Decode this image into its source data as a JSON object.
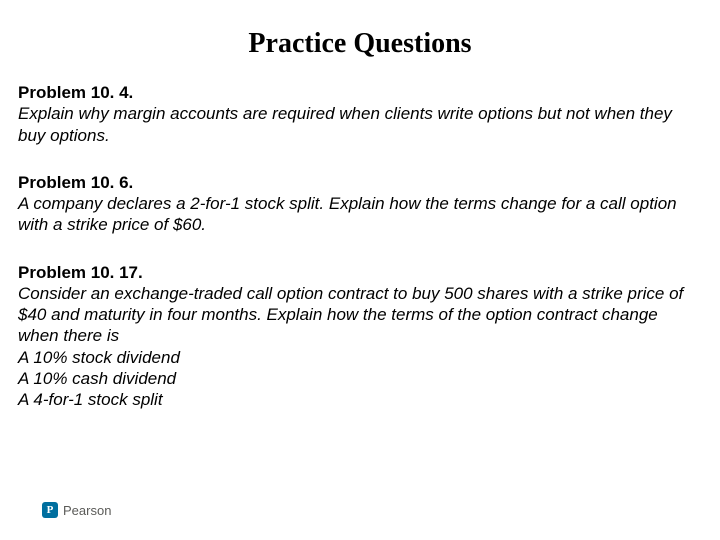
{
  "title": "Practice Questions",
  "title_fontsize": 28,
  "title_color": "#000000",
  "body_fontsize": 17,
  "body_color": "#000000",
  "background_color": "#ffffff",
  "problems": [
    {
      "heading": "Problem 10. 4.",
      "body": "Explain why margin accounts are required when clients write options but not when they buy options."
    },
    {
      "heading": "Problem 10. 6.",
      "body": "A company declares a 2-for-1 stock split. Explain how the terms change for a call option with a strike price of $60."
    },
    {
      "heading": "Problem 10. 17.",
      "body": "Consider an exchange-traded call option contract to buy 500 shares with a strike price of $40 and maturity in four months. Explain how the terms of the option contract change when there is\nA 10% stock dividend\nA 10% cash dividend\nA 4-for-1 stock split"
    }
  ],
  "footer": {
    "logo_letter": "P",
    "brand_text": "Pearson",
    "brand_color": "#006f9f",
    "text_color": "#5b5b58"
  }
}
